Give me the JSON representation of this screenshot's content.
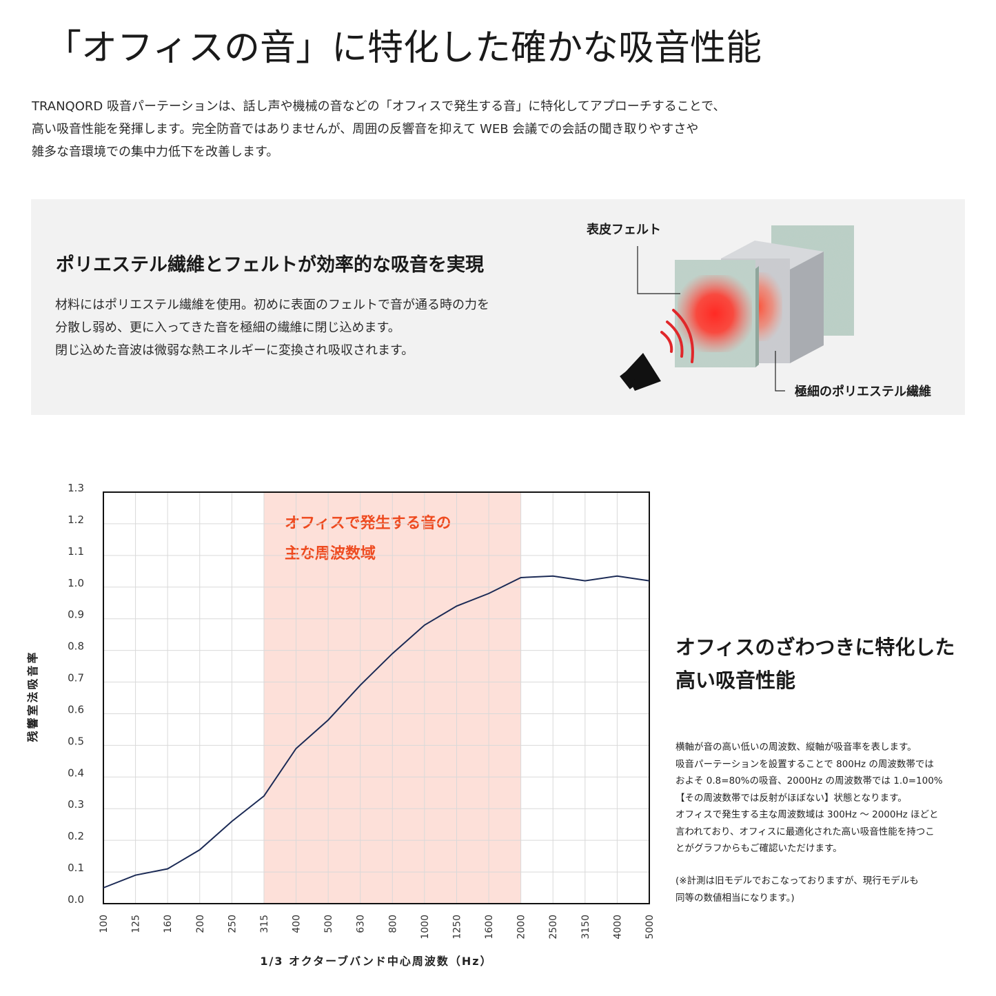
{
  "header": {
    "title": "「オフィスの音」に特化した確かな吸音性能",
    "intro_lines": [
      "TRANQORD 吸音パーテーションは、話し声や機械の音などの「オフィスで発生する音」に特化してアプローチすることで、",
      "高い吸音性能を発揮します。完全防音ではありませんが、周囲の反響音を抑えて WEB 会議での会話の聞き取りやすさや",
      "雑多な音環境での集中力低下を改善します。"
    ]
  },
  "feature": {
    "heading": "ポリエステル繊維とフェルトが効率的な吸音を実現",
    "body_lines": [
      "材料にはポリエステル繊維を使用。初めに表面のフェルトで音が通る時の力を",
      "分散し弱め、更に入ってきた音を極細の繊維に閉じ込めます。",
      "閉じ込めた音波は微弱な熱エネルギーに変換され吸収されます。"
    ],
    "label_top": "表皮フェルト",
    "label_bottom": "極細のポリエステル繊維",
    "icon": "speaker-icon"
  },
  "chart_data": {
    "type": "line",
    "ylabel": "残響室法吸音率",
    "xlabel": "1/3 オクターブバンド中心周波数（Hz）",
    "categories": [
      "100",
      "125",
      "160",
      "200",
      "250",
      "315",
      "400",
      "500",
      "630",
      "800",
      "1000",
      "1250",
      "1600",
      "2000",
      "2500",
      "3150",
      "4000",
      "5000"
    ],
    "yticks": [
      "0.0",
      "0.1",
      "0.2",
      "0.3",
      "0.4",
      "0.5",
      "0.6",
      "0.7",
      "0.8",
      "0.9",
      "1.0",
      "1.1",
      "1.2",
      "1.3"
    ],
    "ylim": [
      0,
      1.3
    ],
    "series": [
      {
        "values": [
          0.05,
          0.09,
          0.11,
          0.17,
          0.26,
          0.34,
          0.49,
          0.58,
          0.69,
          0.79,
          0.88,
          0.94,
          0.98,
          1.03,
          1.035,
          1.02,
          1.035,
          1.02
        ]
      }
    ],
    "highlight": {
      "from": "315",
      "to": "2000",
      "label_lines": [
        "オフィスで発生する音の",
        "主な周波数域"
      ]
    },
    "grid": true,
    "colors": {
      "line": "#1b2a55",
      "highlight": "#fde0d9",
      "highlight_text": "#ee4a1f"
    }
  },
  "side": {
    "heading_lines": [
      "オフィスのざわつきに特化した",
      "高い吸音性能"
    ],
    "body_lines": [
      "横軸が音の高い低いの周波数、縦軸が吸音率を表します。",
      "吸音パーテーションを設置することで 800Hz の周波数帯では",
      "およそ 0.8=80%の吸音、2000Hz の周波数帯では 1.0=100%",
      "【その周波数帯では反射がほぼない】状態となります。",
      "オフィスで発生する主な周波数域は 300Hz 〜 2000Hz ほどと",
      "言われており、オフィスに最適化された高い吸音性能を持つこ",
      "とがグラフからもご確認いただけます。"
    ],
    "note_lines": [
      "(※計測は旧モデルでおこなっておりますが、現行モデルも",
      "同等の数値相当になります。)"
    ]
  }
}
